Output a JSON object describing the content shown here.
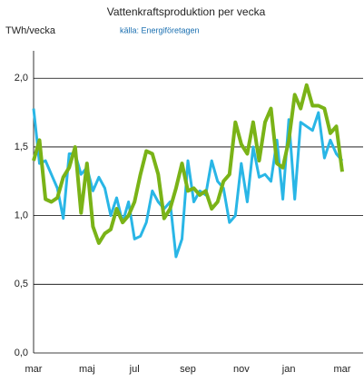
{
  "chart_data": {
    "type": "line",
    "title": "Vattenkraftsproduktion  per vecka",
    "y_label": "TWh/vecka",
    "source": "källa: Energiföretagen",
    "categories": [
      "mar",
      null,
      null,
      null,
      null,
      null,
      null,
      null,
      null,
      "maj",
      null,
      null,
      null,
      null,
      null,
      null,
      null,
      "jul",
      null,
      null,
      null,
      null,
      null,
      null,
      null,
      null,
      "sep",
      null,
      null,
      null,
      null,
      null,
      null,
      null,
      null,
      "nov",
      null,
      null,
      null,
      null,
      null,
      null,
      null,
      "jan",
      null,
      null,
      null,
      null,
      null,
      null,
      null,
      null,
      "mar"
    ],
    "series": [
      {
        "color": "#29b6e6",
        "values": [
          1.78,
          1.38,
          1.4,
          1.3,
          1.2,
          0.98,
          1.45,
          1.45,
          1.3,
          1.35,
          1.18,
          1.28,
          1.2,
          1.0,
          1.13,
          0.95,
          1.1,
          0.83,
          0.85,
          0.95,
          1.18,
          1.1,
          1.05,
          1.1,
          0.7,
          0.83,
          1.4,
          1.1,
          1.18,
          1.15,
          1.4,
          1.25,
          1.2,
          0.95,
          1.0,
          1.38,
          1.1,
          1.5,
          1.28,
          1.3,
          1.25,
          1.55,
          1.12,
          1.7,
          1.12,
          1.68,
          1.65,
          1.62,
          1.75,
          1.42,
          1.55,
          1.45,
          1.4
        ]
      },
      {
        "color": "#7ab317",
        "values": [
          1.4,
          1.55,
          1.12,
          1.1,
          1.13,
          1.28,
          1.35,
          1.5,
          1.02,
          1.38,
          0.92,
          0.8,
          0.87,
          0.9,
          1.05,
          0.95,
          1.0,
          1.1,
          1.3,
          1.47,
          1.45,
          1.3,
          0.98,
          1.05,
          1.2,
          1.38,
          1.18,
          1.2,
          1.15,
          1.18,
          1.05,
          1.1,
          1.25,
          1.3,
          1.68,
          1.52,
          1.45,
          1.68,
          1.4,
          1.68,
          1.78,
          1.38,
          1.35,
          1.55,
          1.88,
          1.78,
          1.95,
          1.8,
          1.8,
          1.78,
          1.6,
          1.65,
          1.32
        ]
      }
    ],
    "ylim": [
      0,
      2.2
    ],
    "yticks": [
      {
        "value": 0,
        "label": "0,0"
      },
      {
        "value": 0.5,
        "label": "0,5"
      },
      {
        "value": 1.0,
        "label": "1,0"
      },
      {
        "value": 1.5,
        "label": "1,5"
      },
      {
        "value": 2.0,
        "label": "2,0"
      }
    ],
    "grid": true
  }
}
